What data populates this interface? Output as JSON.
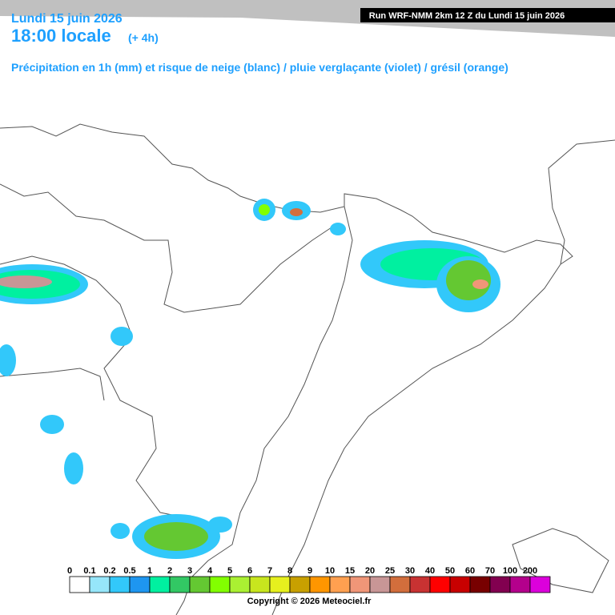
{
  "header": {
    "date": "Lundi 15 juin 2026",
    "time": "18:00 locale",
    "offset": "(+ 4h)",
    "run": "Run WRF-NMM 2km 12 Z du Lundi 15 juin 2026",
    "subtitle": "Précipitation en 1h (mm) et risque de neige (blanc) / pluie verglaçante (violet) / grésil (orange)"
  },
  "legend": {
    "labels": [
      0,
      0.1,
      0.2,
      0.5,
      1,
      2,
      3,
      4,
      5,
      6,
      7,
      8,
      9,
      10,
      15,
      20,
      25,
      30,
      40,
      50,
      60,
      70,
      100,
      200
    ],
    "colors": [
      "#ffffff",
      "#96e6fa",
      "#32c8fa",
      "#1e96f0",
      "#00f0a0",
      "#32c864",
      "#64c832",
      "#82ff00",
      "#aaf032",
      "#c8e61e",
      "#e6f01e",
      "#c8a000",
      "#ff9600",
      "#ffa050",
      "#f09678",
      "#c89696",
      "#d26e3c",
      "#c83232",
      "#ff0000",
      "#c80000",
      "#780000",
      "#820050",
      "#b4008c",
      "#dc00dc"
    ]
  },
  "footer": {
    "copyright": "Copyright © 2026 Meteociel.fr"
  }
}
